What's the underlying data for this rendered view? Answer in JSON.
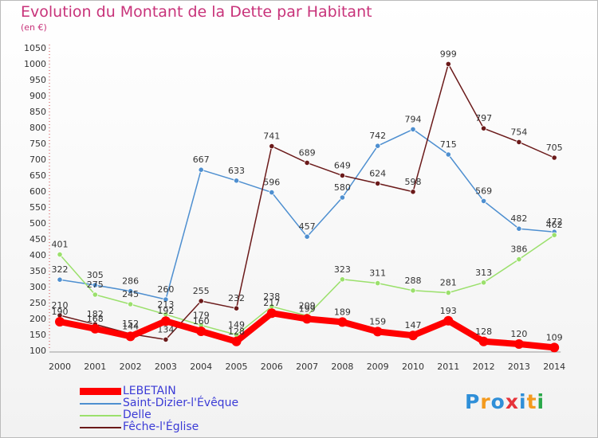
{
  "title": "Evolution du Montant de la Dette par Habitant",
  "subtitle": "(en €)",
  "logo_text": "Proxiti",
  "colors": {
    "title": "#c8337a",
    "LEBETAIN": "#ff0000",
    "Saint-Dizier-l'Évêque": "#4e8fd0",
    "Delle": "#9be06c",
    "Fêche-l'Église": "#6b1a1a"
  },
  "chart_data": {
    "type": "line",
    "title": "Evolution du Montant de la Dette par Habitant",
    "ylabel": "(en €)",
    "x": [
      "2000",
      "2001",
      "2002",
      "2003",
      "2004",
      "2005",
      "2006",
      "2007",
      "2008",
      "2009",
      "2010",
      "2011",
      "2012",
      "2013",
      "2014"
    ],
    "ylim": [
      100,
      1050
    ],
    "yticks": [
      100,
      150,
      200,
      250,
      300,
      350,
      400,
      450,
      500,
      550,
      600,
      650,
      700,
      750,
      800,
      850,
      900,
      950,
      1000,
      1050
    ],
    "grid": false,
    "legend": "bottom-left",
    "series": [
      {
        "name": "LEBETAIN",
        "values": [
          190,
          168,
          144,
          192,
          160,
          128,
          217,
          199,
          189,
          159,
          147,
          193,
          128,
          120,
          109
        ]
      },
      {
        "name": "Saint-Dizier-l'Évêque",
        "values": [
          322,
          305,
          286,
          260,
          667,
          633,
          596,
          457,
          580,
          742,
          794,
          715,
          569,
          482,
          472
        ]
      },
      {
        "name": "Delle",
        "values": [
          401,
          275,
          245,
          213,
          179,
          149,
          238,
          209,
          323,
          311,
          288,
          281,
          313,
          386,
          462
        ]
      },
      {
        "name": "Fêche-l'Église",
        "values": [
          210,
          182,
          152,
          134,
          255,
          232,
          741,
          689,
          649,
          624,
          598,
          999,
          797,
          754,
          705
        ]
      }
    ]
  }
}
